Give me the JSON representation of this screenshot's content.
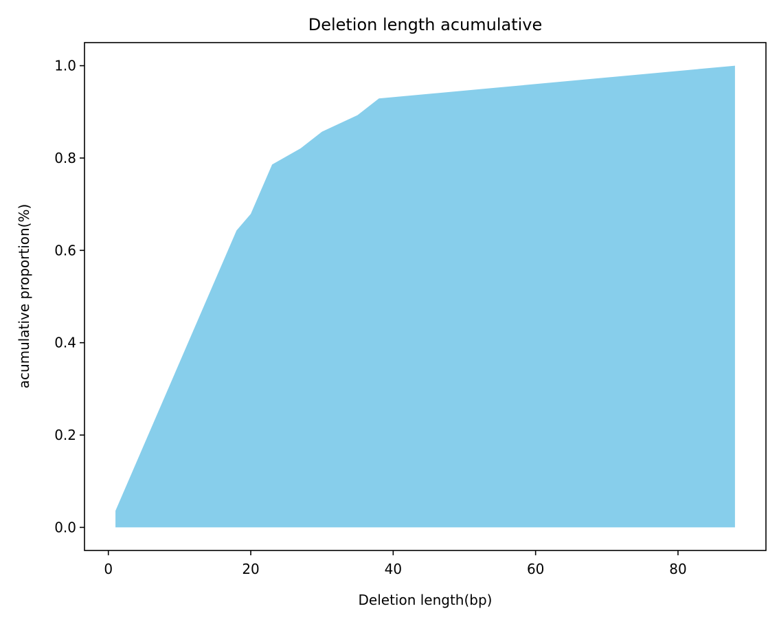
{
  "chart_data": {
    "type": "area",
    "title": "Deletion length acumulative",
    "xlabel": "Deletion length(bp)",
    "ylabel": "acumulative proportion(%)",
    "xlim": [
      -3.35,
      92.35
    ],
    "ylim": [
      -0.05,
      1.05
    ],
    "x_ticks": [
      0,
      20,
      40,
      60,
      80
    ],
    "x_tick_labels": [
      "0",
      "20",
      "40",
      "60",
      "80"
    ],
    "y_ticks": [
      0.0,
      0.2,
      0.4,
      0.6,
      0.8,
      1.0
    ],
    "y_tick_labels": [
      "0.0",
      "0.2",
      "0.4",
      "0.6",
      "0.8",
      "1.0"
    ],
    "grid": false,
    "legend": "none",
    "series": [
      {
        "color": "#87ceeb",
        "x": [
          1,
          18,
          20,
          23,
          27,
          30,
          35,
          38,
          88
        ],
        "y": [
          0.036,
          0.643,
          0.679,
          0.786,
          0.821,
          0.857,
          0.893,
          0.929,
          1.0
        ]
      }
    ]
  }
}
